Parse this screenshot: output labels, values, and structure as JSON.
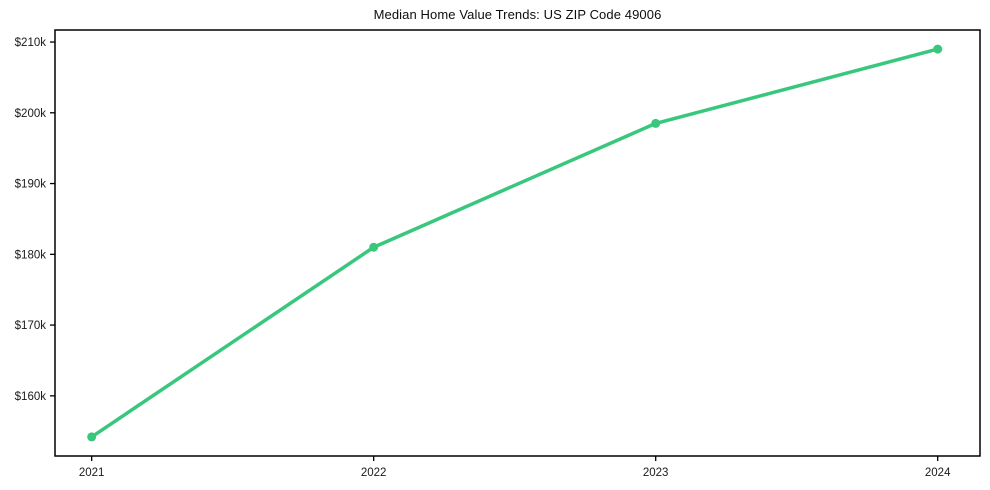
{
  "figure": {
    "background_color": "#ffffff",
    "axis_color": "#000000",
    "tick_label_color": "#1a1a1a"
  },
  "chart_data": {
    "type": "line",
    "title": "Median Home Value Trends: US ZIP Code 49006",
    "x": [
      2021,
      2022,
      2023,
      2024
    ],
    "x_tick_labels": [
      "2021",
      "2022",
      "2023",
      "2024"
    ],
    "values": [
      154200,
      181000,
      198500,
      209000
    ],
    "y_ticks": [
      160000,
      170000,
      180000,
      190000,
      200000,
      210000
    ],
    "y_tick_labels": [
      "$160k",
      "$170k",
      "$180k",
      "$190k",
      "$200k",
      "$210k"
    ],
    "xlim": [
      2020.87,
      2024.15
    ],
    "ylim": [
      151500,
      211700
    ],
    "grid": false,
    "line_color": "#39c77d",
    "marker": "circle",
    "xlabel": "",
    "ylabel": ""
  }
}
